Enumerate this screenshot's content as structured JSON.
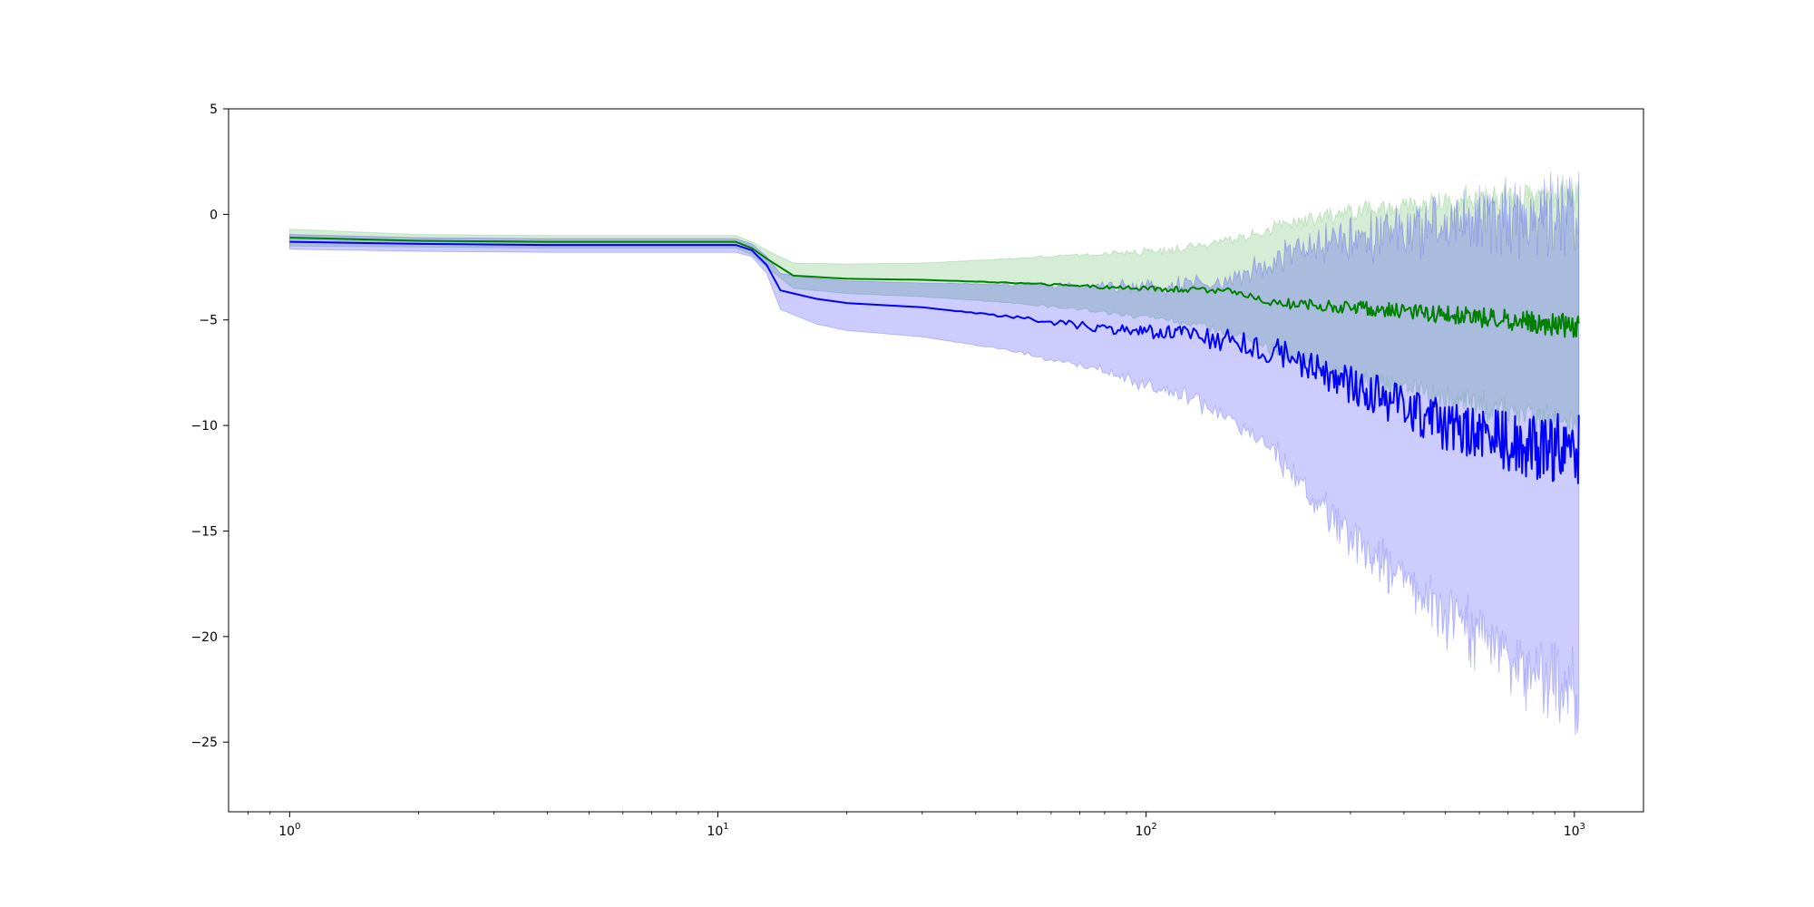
{
  "chart_data": {
    "type": "line",
    "title": "",
    "xlabel": "",
    "ylabel": "",
    "xscale": "log",
    "xlim": [
      0.72,
      1450
    ],
    "ylim": [
      -28.3,
      5
    ],
    "grid": false,
    "legend": "none",
    "x_ticks": [
      {
        "value": 1,
        "base": "10",
        "exp": "0"
      },
      {
        "value": 10,
        "base": "10",
        "exp": "1"
      },
      {
        "value": 100,
        "base": "10",
        "exp": "2"
      },
      {
        "value": 1000,
        "base": "10",
        "exp": "3"
      }
    ],
    "y_ticks": [
      {
        "value": 5,
        "label": "5"
      },
      {
        "value": 0,
        "label": "0"
      },
      {
        "value": -5,
        "label": "−5"
      },
      {
        "value": -10,
        "label": "−10"
      },
      {
        "value": -15,
        "label": "−15"
      },
      {
        "value": -20,
        "label": "−20"
      },
      {
        "value": -25,
        "label": "−25"
      }
    ],
    "series": [
      {
        "color": "#008000",
        "band_color": "#2ca02c",
        "x": [
          1,
          2,
          4,
          8,
          11,
          12,
          13,
          15,
          20,
          30,
          50,
          80,
          120,
          165,
          200,
          300,
          500,
          800,
          1024
        ],
        "mean": [
          -1.1,
          -1.25,
          -1.3,
          -1.3,
          -1.3,
          -1.6,
          -2.1,
          -2.9,
          -3.05,
          -3.1,
          -3.25,
          -3.45,
          -3.55,
          -3.7,
          -4.2,
          -4.4,
          -4.75,
          -5.1,
          -5.3
        ],
        "upper": [
          -0.7,
          -0.95,
          -1.0,
          -1.0,
          -1.0,
          -1.3,
          -1.7,
          -2.3,
          -2.35,
          -2.3,
          -2.1,
          -1.9,
          -1.7,
          -1.2,
          -0.7,
          0.0,
          0.4,
          0.7,
          0.8
        ],
        "lower": [
          -1.5,
          -1.55,
          -1.6,
          -1.6,
          -1.6,
          -1.9,
          -2.5,
          -3.5,
          -3.75,
          -3.9,
          -4.2,
          -4.6,
          -5.0,
          -5.6,
          -6.3,
          -7.5,
          -8.5,
          -9.3,
          -9.6
        ],
        "noise_from": 30,
        "mean_noise": [
          0.0,
          0.6
        ],
        "band_noise": [
          0.0,
          1.5
        ]
      },
      {
        "color": "#0000ff",
        "band_color": "#0000ff",
        "x": [
          1,
          2,
          4,
          8,
          11,
          12,
          13,
          14,
          17,
          20,
          30,
          50,
          80,
          120,
          160,
          200,
          250,
          350,
          500,
          800,
          1024
        ],
        "mean": [
          -1.3,
          -1.4,
          -1.45,
          -1.45,
          -1.45,
          -1.7,
          -2.4,
          -3.6,
          -4.0,
          -4.2,
          -4.4,
          -4.9,
          -5.4,
          -5.7,
          -6.0,
          -6.5,
          -7.4,
          -8.6,
          -10.0,
          -11.0,
          -11.2
        ],
        "upper": [
          -0.95,
          -1.1,
          -1.15,
          -1.15,
          -1.15,
          -1.4,
          -2.0,
          -2.8,
          -3.05,
          -3.15,
          -3.25,
          -3.35,
          -3.5,
          -3.6,
          -3.3,
          -2.5,
          -1.8,
          -1.3,
          -1.0,
          -0.7,
          -0.6
        ],
        "lower": [
          -1.65,
          -1.75,
          -1.8,
          -1.8,
          -1.8,
          -2.0,
          -2.8,
          -4.5,
          -5.2,
          -5.5,
          -5.8,
          -6.5,
          -7.3,
          -8.5,
          -9.4,
          -11.0,
          -13.5,
          -16.0,
          -18.5,
          -21.0,
          -22.0
        ],
        "noise_from": 30,
        "mean_noise": [
          0.0,
          1.8
        ],
        "band_noise": [
          0.0,
          3.5
        ]
      }
    ]
  }
}
